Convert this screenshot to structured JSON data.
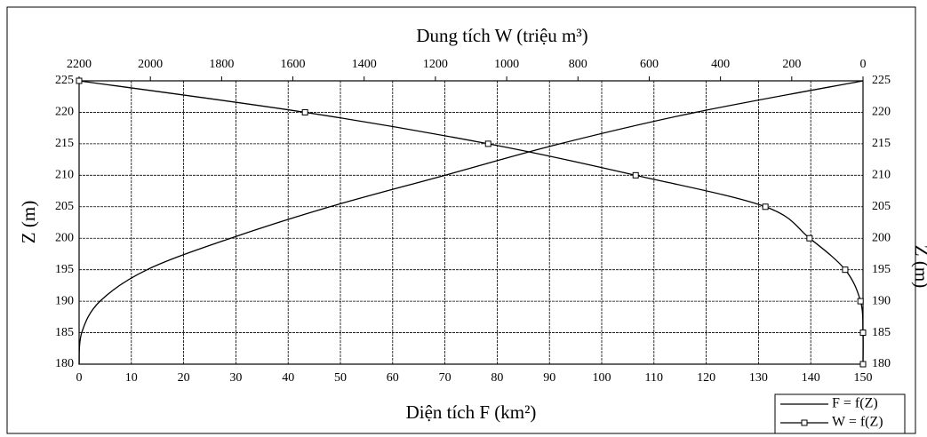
{
  "chart_data": {
    "type": "line",
    "title": "Dung tích W (triệu m³)",
    "x_label": "Diện tích F (km²)",
    "y_label": "Z (m)",
    "y2_label": "Z (m)",
    "z": [
      180,
      185,
      190,
      195,
      200,
      205,
      210,
      215,
      220,
      225
    ],
    "series": [
      {
        "name": "F = f(Z)",
        "color": "#000000",
        "axis": "x",
        "marker": false,
        "values": [
          0,
          0.5,
          4,
          13,
          29,
          48,
          70,
          92,
          118,
          150
        ]
      },
      {
        "name": "W = f(Z)",
        "color": "#000000",
        "axis": "x2",
        "marker": true,
        "values": [
          0,
          0,
          7,
          50,
          150,
          274,
          638,
          1052,
          1566,
          2200
        ]
      }
    ],
    "xlim": [
      0,
      150
    ],
    "xticks": [
      0,
      10,
      20,
      30,
      40,
      50,
      60,
      70,
      80,
      90,
      100,
      110,
      120,
      130,
      140,
      150
    ],
    "x2lim": [
      2200,
      0
    ],
    "x2ticks": [
      2200,
      2000,
      1800,
      1600,
      1400,
      1200,
      1000,
      800,
      600,
      400,
      200,
      0
    ],
    "ylim": [
      180,
      225
    ],
    "yticks": [
      180,
      185,
      190,
      195,
      200,
      205,
      210,
      215,
      220,
      225
    ],
    "grid": true,
    "legend": "bottom-right"
  }
}
